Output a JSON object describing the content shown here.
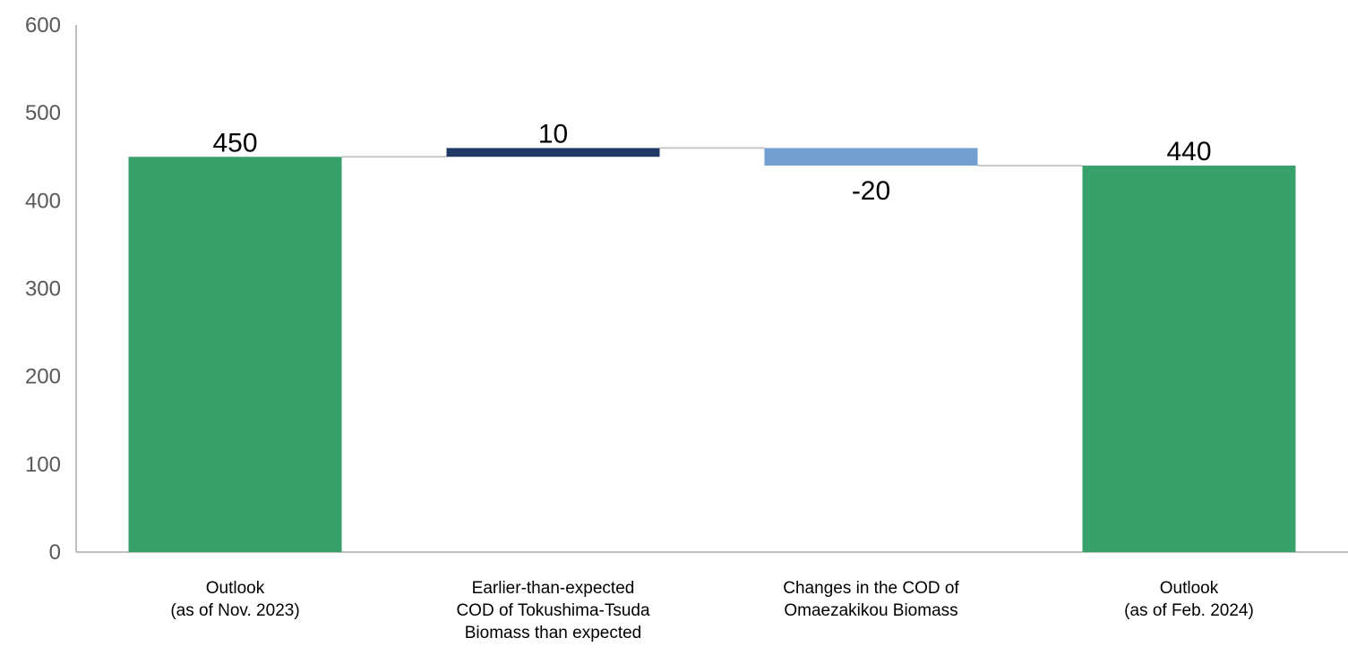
{
  "chart_data": {
    "type": "bar",
    "subtype": "waterfall",
    "title": "",
    "xlabel": "",
    "ylabel": "",
    "ylim": [
      0,
      600
    ],
    "yticks": [
      "0",
      "100",
      "200",
      "300",
      "400",
      "500",
      "600"
    ],
    "grid": false,
    "legend": "none",
    "categories": [
      [
        "Outlook",
        "(as of Nov. 2023)"
      ],
      [
        "Earlier-than-expected",
        "COD of Tokushima-Tsuda",
        "Biomass than expected"
      ],
      [
        "Changes in the COD of",
        "Omaezakikou Biomass"
      ],
      [
        "Outlook",
        "(as of Feb. 2024)"
      ]
    ],
    "bars": [
      {
        "kind": "total",
        "start": 0,
        "end": 450,
        "label": "450",
        "color": "#38a06a"
      },
      {
        "kind": "delta",
        "start": 450,
        "end": 460,
        "label": "10",
        "color": "#1f3864"
      },
      {
        "kind": "delta",
        "start": 460,
        "end": 440,
        "label": "-20",
        "color": "#729fcf"
      },
      {
        "kind": "total",
        "start": 0,
        "end": 440,
        "label": "440",
        "color": "#38a06a"
      }
    ],
    "colors": {
      "axis": "#bfbfbf",
      "connector": "#c8c8c8"
    }
  }
}
